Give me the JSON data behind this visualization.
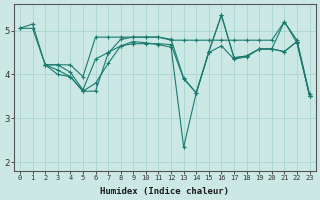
{
  "background_color": "#cce8e4",
  "grid_color": "#aad4d0",
  "line_color": "#1a7a6e",
  "xlabel": "Humidex (Indice chaleur)",
  "xlim": [
    -0.5,
    23.5
  ],
  "ylim": [
    1.8,
    5.6
  ],
  "yticks": [
    2,
    3,
    4,
    5
  ],
  "xticks": [
    0,
    1,
    2,
    3,
    4,
    5,
    6,
    7,
    8,
    9,
    10,
    11,
    12,
    13,
    14,
    15,
    16,
    17,
    18,
    19,
    20,
    21,
    22,
    23
  ],
  "lines": [
    {
      "x": [
        0,
        1,
        2,
        3,
        4,
        5,
        6,
        7,
        8,
        9,
        10,
        11,
        12,
        13,
        14,
        15,
        16,
        17,
        18,
        19,
        20,
        21,
        22,
        23
      ],
      "y": [
        5.05,
        5.15,
        4.22,
        4.22,
        4.22,
        3.95,
        4.85,
        4.85,
        4.85,
        4.85,
        4.85,
        4.85,
        4.78,
        4.78,
        4.78,
        4.78,
        4.78,
        4.78,
        4.78,
        4.78,
        4.78,
        5.2,
        4.78,
        3.55
      ]
    },
    {
      "x": [
        0,
        1,
        2,
        3,
        4,
        5,
        6,
        7,
        8,
        9,
        10,
        11,
        12,
        13,
        14,
        15,
        16,
        17,
        18,
        19,
        20,
        21,
        22,
        23
      ],
      "y": [
        5.05,
        5.05,
        4.22,
        4.22,
        4.05,
        3.65,
        4.35,
        4.5,
        4.65,
        4.7,
        4.7,
        4.7,
        4.68,
        3.9,
        3.58,
        4.5,
        4.65,
        4.35,
        4.4,
        4.58,
        4.58,
        5.2,
        4.72,
        3.52
      ]
    },
    {
      "x": [
        2,
        3,
        4,
        5,
        6,
        7,
        8,
        9,
        10,
        11,
        12,
        13,
        14,
        15,
        16,
        17,
        18,
        19,
        20,
        21,
        22,
        23
      ],
      "y": [
        4.22,
        4.1,
        3.95,
        3.62,
        3.8,
        4.25,
        4.65,
        4.75,
        4.72,
        4.68,
        4.62,
        2.35,
        3.58,
        4.52,
        5.35,
        4.38,
        4.42,
        4.58,
        4.58,
        4.52,
        4.75,
        3.52
      ]
    },
    {
      "x": [
        2,
        3,
        4,
        5,
        6,
        7,
        8,
        9,
        10,
        11,
        12,
        13,
        14,
        15,
        16,
        17,
        18,
        19,
        20,
        21,
        22,
        23
      ],
      "y": [
        4.22,
        4.0,
        3.95,
        3.62,
        3.62,
        4.48,
        4.8,
        4.85,
        4.85,
        4.85,
        4.8,
        3.92,
        3.58,
        4.52,
        5.35,
        4.38,
        4.42,
        4.58,
        4.58,
        4.52,
        4.75,
        3.52
      ]
    }
  ]
}
